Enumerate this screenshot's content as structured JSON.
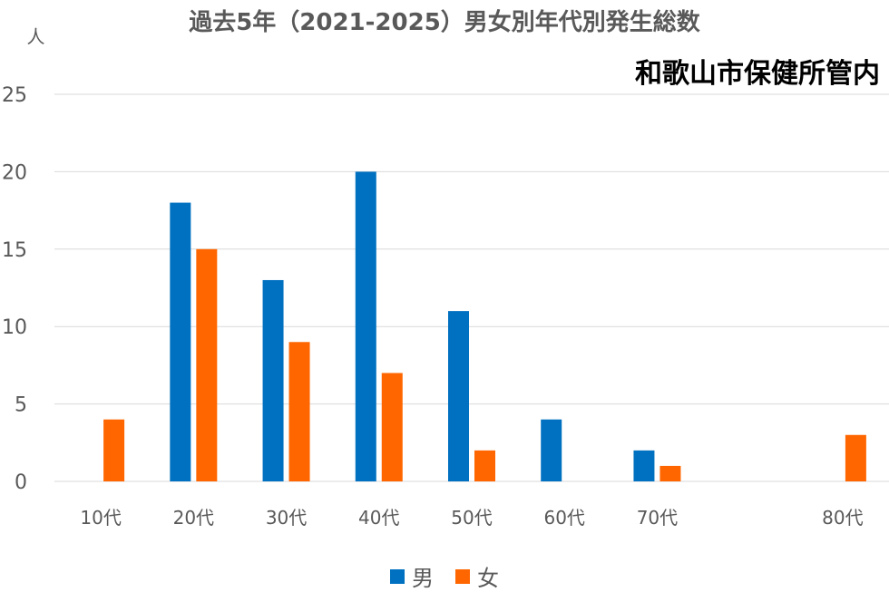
{
  "chart_data": {
    "type": "bar",
    "title": "過去5年（2021-2025）男女別年代別発生総数",
    "subtitle": "和歌山市保健所管内",
    "ylabel": "人",
    "ylim": [
      0,
      25
    ],
    "yticks": [
      0,
      5,
      10,
      15,
      20,
      25
    ],
    "grid": true,
    "legend_position": "bottom",
    "categories": [
      "10代",
      "20代",
      "30代",
      "40代",
      "50代",
      "60代",
      "70代",
      "",
      "80代"
    ],
    "series": [
      {
        "name": "男",
        "color": "#0070C0",
        "values": [
          0,
          18,
          13,
          20,
          11,
          4,
          2,
          0,
          0
        ]
      },
      {
        "name": "女",
        "color": "#FF6600",
        "values": [
          4,
          15,
          9,
          7,
          2,
          0,
          1,
          0,
          3
        ]
      }
    ]
  }
}
